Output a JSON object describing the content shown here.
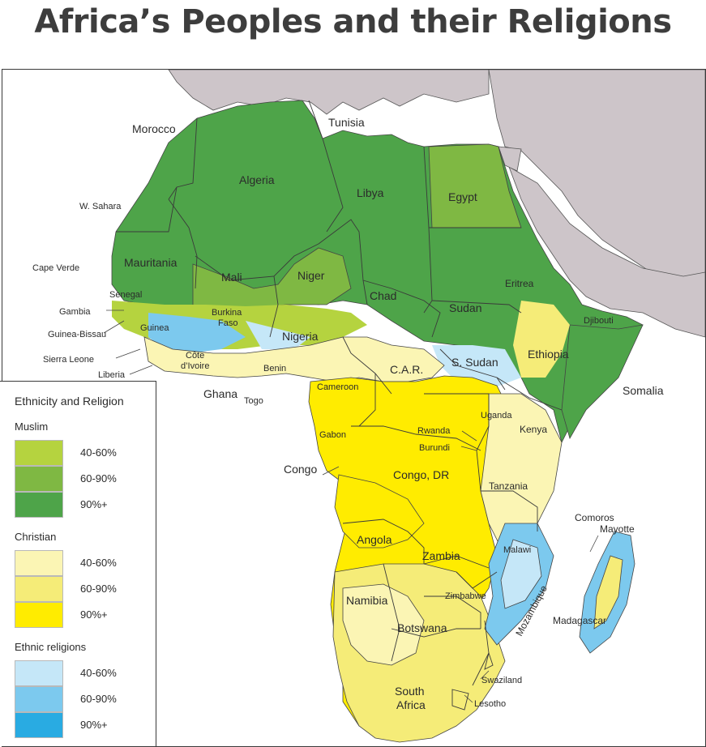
{
  "title": "Africa’s Peoples and their Religions",
  "colors": {
    "ocean": "#ffffff",
    "other_land": "#cdc5c9",
    "muslim_40_60": "#b5d33f",
    "muslim_60_90": "#7fb843",
    "muslim_90": "#4ea449",
    "christian_40_60": "#fbf5b4",
    "christian_60_90": "#f5ec78",
    "christian_90": "#ffec00",
    "ethnic_40_60": "#c5e7f8",
    "ethnic_60_90": "#7cc9ee",
    "ethnic_90": "#29abe2"
  },
  "map": {
    "labels": {
      "morocco": "Morocco",
      "tunisia": "Tunisia",
      "algeria": "Algeria",
      "libya": "Libya",
      "egypt": "Egypt",
      "w_sahara": "W. Sahara",
      "mauritania": "Mauritania",
      "mali": "Mali",
      "niger": "Niger",
      "chad": "Chad",
      "sudan": "Sudan",
      "eritrea": "Eritrea",
      "djibouti": "Djibouti",
      "cape_verde": "Cape Verde",
      "senegal": "Senegal",
      "gambia": "Gambia",
      "guinea_bissau": "Guinea-Bissau",
      "guinea": "Guinea",
      "sierra_leone": "Sierra Leone",
      "liberia": "Liberia",
      "cote_divoire_1": "Côte",
      "cote_divoire_2": "d’Ivoire",
      "burkina_1": "Burkina",
      "burkina_2": "Faso",
      "nigeria": "Nigeria",
      "ghana": "Ghana",
      "togo": "Togo",
      "benin": "Benin",
      "cameroon": "Cameroon",
      "car": "C.A.R.",
      "s_sudan": "S. Sudan",
      "ethiopia": "Ethiopia",
      "somalia": "Somalia",
      "kenya": "Kenya",
      "uganda": "Uganda",
      "rwanda": "Rwanda",
      "burundi": "Burundi",
      "gabon": "Gabon",
      "congo": "Congo",
      "congo_dr": "Congo, DR",
      "tanzania": "Tanzania",
      "comoros": "Comoros",
      "mayotte": "Mayotte",
      "angola": "Angola",
      "zambia": "Zambia",
      "malawi": "Malawi",
      "mozambique": "Mozambique",
      "madagascar": "Madagascar",
      "namibia": "Namibia",
      "zimbabwe": "Zimbabwe",
      "botswana": "Botswana",
      "swaziland": "Swaziland",
      "south_africa_1": "South",
      "south_africa_2": "Africa",
      "lesotho": "Lesotho"
    }
  },
  "legend": {
    "title": "Ethnicity and Religion",
    "groups": [
      {
        "name": "Muslim",
        "items": [
          "40-60%",
          "60-90%",
          "90%+"
        ]
      },
      {
        "name": "Christian",
        "items": [
          "40-60%",
          "60-90%",
          "90%+"
        ]
      },
      {
        "name": "Ethnic religions",
        "items": [
          "40-60%",
          "60-90%",
          "90%+"
        ]
      }
    ]
  }
}
